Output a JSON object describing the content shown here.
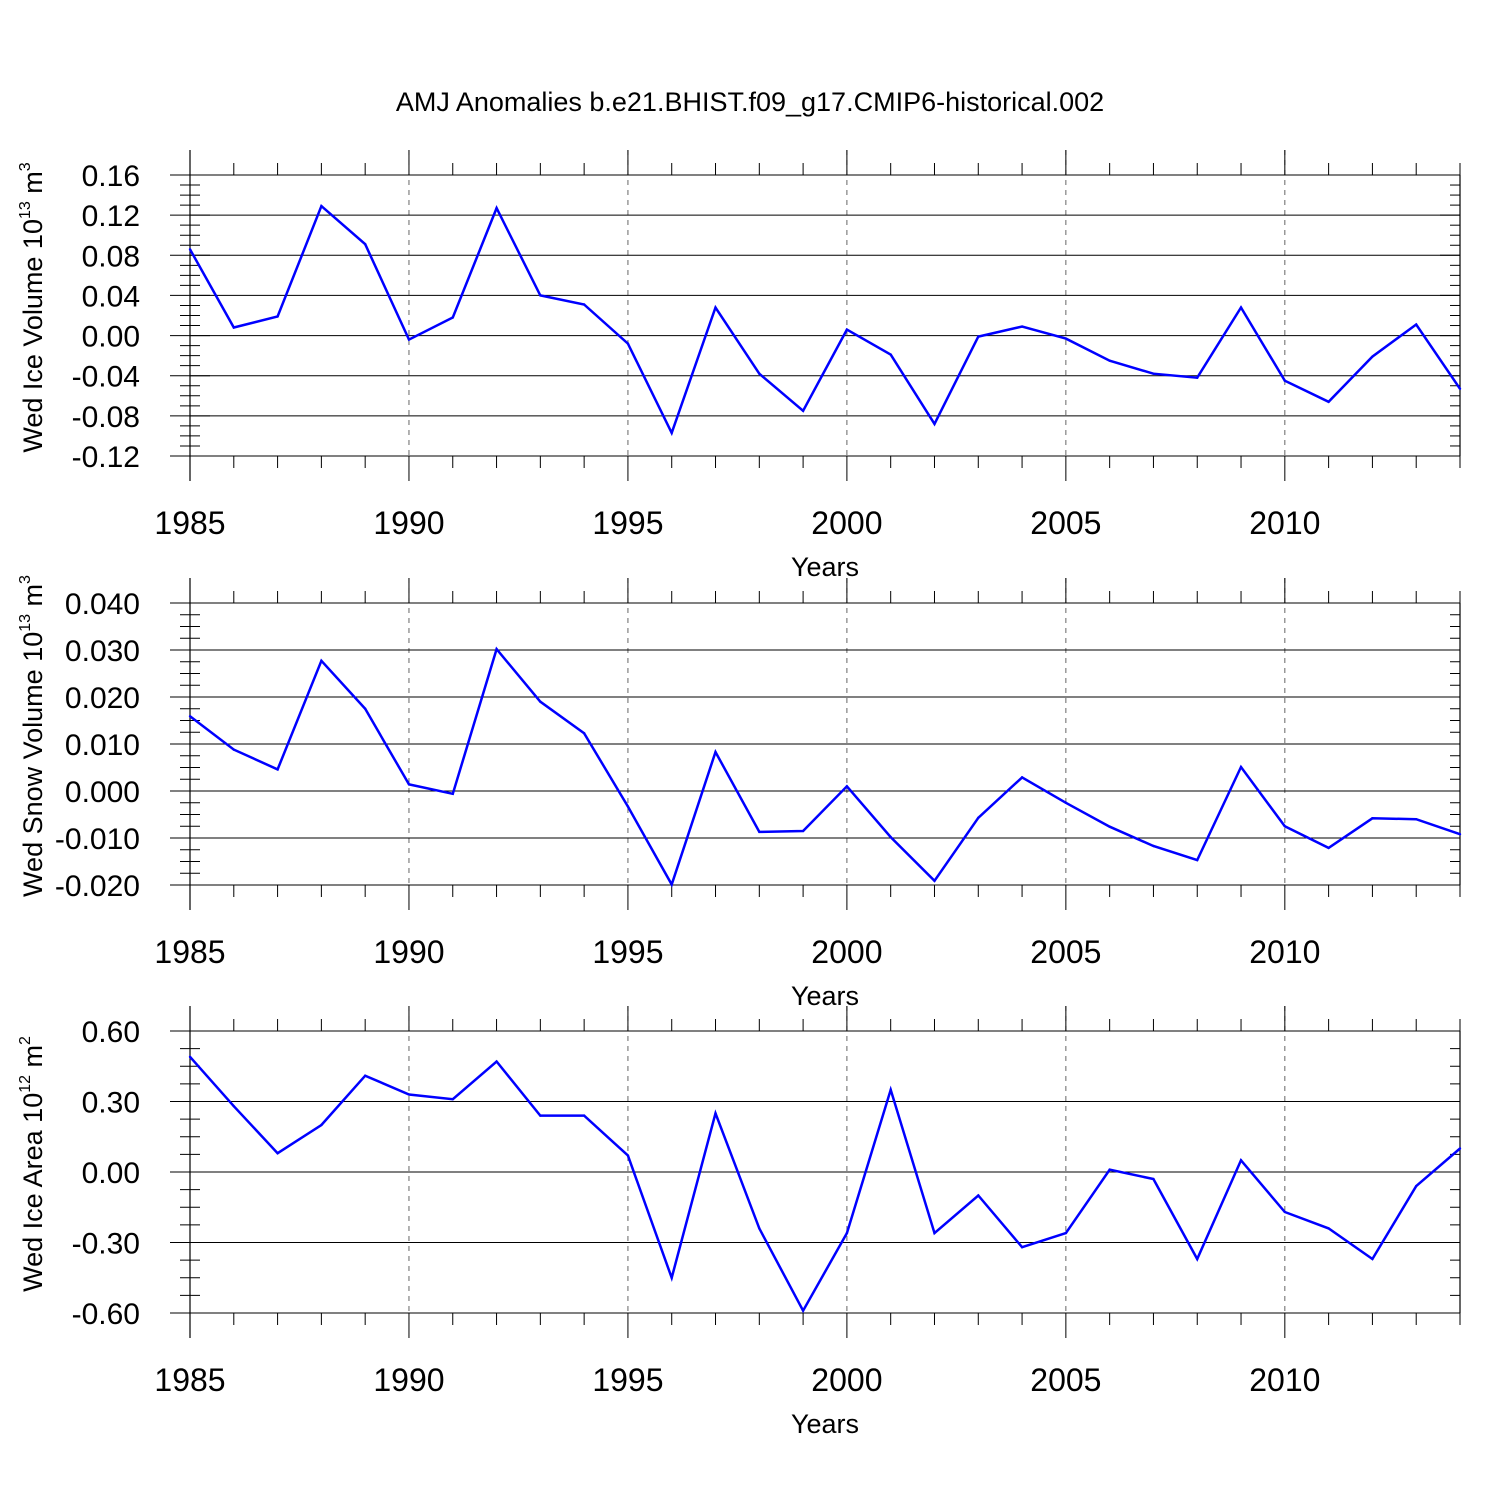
{
  "title": "AMJ Anomalies b.e21.BHIST.f09_g17.CMIP6-historical.002",
  "colors": {
    "line": "#0000ff",
    "axis": "#000000",
    "grid": "#666666"
  },
  "chart_data": [
    {
      "type": "line",
      "name": "ice-volume",
      "ylabel_main": "Wed Ice Volume 10",
      "ylabel_exp1": "13",
      "ylabel_unit": " m",
      "ylabel_exp2": "3",
      "xlabel": "Years",
      "xlim": [
        1985,
        2014
      ],
      "ylim": [
        -0.12,
        0.16
      ],
      "yticks": [
        0.16,
        0.12,
        0.08,
        0.04,
        0.0,
        -0.04,
        -0.08,
        -0.12
      ],
      "ytick_labels": [
        "0.16",
        "0.12",
        "0.08",
        "0.04",
        "0.00",
        "-0.04",
        "-0.08",
        "-0.12"
      ],
      "xticks": [
        1985,
        1990,
        1995,
        2000,
        2005,
        2010
      ],
      "xtick_labels": [
        "1985",
        "1990",
        "1995",
        "2000",
        "2005",
        "2010"
      ],
      "x": [
        1985,
        1986,
        1987,
        1988,
        1989,
        1990,
        1991,
        1992,
        1993,
        1994,
        1995,
        1996,
        1997,
        1998,
        1999,
        2000,
        2001,
        2002,
        2003,
        2004,
        2005,
        2006,
        2007,
        2008,
        2009,
        2010,
        2011,
        2012,
        2013,
        2014
      ],
      "values": [
        0.086,
        0.008,
        0.019,
        0.129,
        0.091,
        -0.004,
        0.018,
        0.127,
        0.04,
        0.031,
        -0.008,
        -0.097,
        0.028,
        -0.038,
        -0.075,
        0.006,
        -0.019,
        -0.088,
        -0.001,
        0.009,
        -0.003,
        -0.025,
        -0.038,
        -0.042,
        0.028,
        -0.045,
        -0.066,
        -0.021,
        0.011,
        -0.053
      ]
    },
    {
      "type": "line",
      "name": "snow-volume",
      "ylabel_main": "Wed Snow Volume 10",
      "ylabel_exp1": "13",
      "ylabel_unit": " m",
      "ylabel_exp2": "3",
      "xlabel": "Years",
      "xlim": [
        1985,
        2014
      ],
      "ylim": [
        -0.02,
        0.04
      ],
      "yticks": [
        0.04,
        0.03,
        0.02,
        0.01,
        0.0,
        -0.01,
        -0.02
      ],
      "ytick_labels": [
        "0.040",
        "0.030",
        "0.020",
        "0.010",
        "0.000",
        "-0.010",
        "-0.020"
      ],
      "xticks": [
        1985,
        1990,
        1995,
        2000,
        2005,
        2010
      ],
      "xtick_labels": [
        "1985",
        "1990",
        "1995",
        "2000",
        "2005",
        "2010"
      ],
      "x": [
        1985,
        1986,
        1987,
        1988,
        1989,
        1990,
        1991,
        1992,
        1993,
        1994,
        1995,
        1996,
        1997,
        1998,
        1999,
        2000,
        2001,
        2002,
        2003,
        2004,
        2005,
        2006,
        2007,
        2008,
        2009,
        2010,
        2011,
        2012,
        2013,
        2014
      ],
      "values": [
        0.0159,
        0.0088,
        0.0046,
        0.0277,
        0.0175,
        0.0014,
        -0.0006,
        0.0302,
        0.019,
        0.0123,
        -0.0033,
        -0.0199,
        0.0083,
        -0.0087,
        -0.0085,
        0.001,
        -0.0098,
        -0.0191,
        -0.0057,
        0.0029,
        -0.0025,
        -0.0076,
        -0.0117,
        -0.0147,
        0.0051,
        -0.0075,
        -0.0121,
        -0.0058,
        -0.006,
        -0.0092
      ]
    },
    {
      "type": "line",
      "name": "ice-area",
      "ylabel_main": "Wed Ice Area 10",
      "ylabel_exp1": "12",
      "ylabel_unit": " m",
      "ylabel_exp2": "2",
      "xlabel": "Years",
      "xlim": [
        1985,
        2014
      ],
      "ylim": [
        -0.6,
        0.6
      ],
      "yticks": [
        0.6,
        0.3,
        0.0,
        -0.3,
        -0.6
      ],
      "ytick_labels": [
        "0.60",
        "0.30",
        "0.00",
        "-0.30",
        "-0.60"
      ],
      "xticks": [
        1985,
        1990,
        1995,
        2000,
        2005,
        2010
      ],
      "xtick_labels": [
        "1985",
        "1990",
        "1995",
        "2000",
        "2005",
        "2010"
      ],
      "x": [
        1985,
        1986,
        1987,
        1988,
        1989,
        1990,
        1991,
        1992,
        1993,
        1994,
        1995,
        1996,
        1997,
        1998,
        1999,
        2000,
        2001,
        2002,
        2003,
        2004,
        2005,
        2006,
        2007,
        2008,
        2009,
        2010,
        2011,
        2012,
        2013,
        2014
      ],
      "values": [
        0.49,
        0.28,
        0.08,
        0.2,
        0.41,
        0.33,
        0.31,
        0.47,
        0.24,
        0.24,
        0.07,
        -0.45,
        0.25,
        -0.24,
        -0.59,
        -0.26,
        0.35,
        -0.26,
        -0.1,
        -0.32,
        -0.26,
        0.01,
        -0.03,
        -0.37,
        0.05,
        -0.17,
        -0.24,
        -0.37,
        -0.06,
        0.1
      ]
    }
  ]
}
